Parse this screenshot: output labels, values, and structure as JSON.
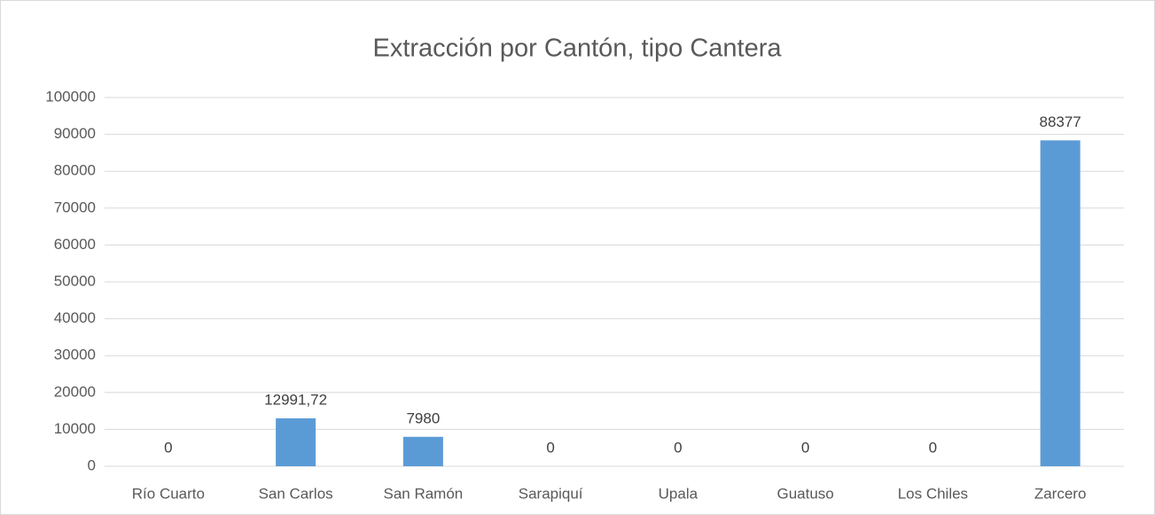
{
  "chart_data": {
    "type": "bar",
    "title": "Extracción por Cantón, tipo Cantera",
    "categories": [
      "Río Cuarto",
      "San Carlos",
      "San Ramón",
      "Sarapiquí",
      "Upala",
      "Guatuso",
      "Los Chiles",
      "Zarcero"
    ],
    "values": [
      0,
      12991.72,
      7980,
      0,
      0,
      0,
      0,
      88377
    ],
    "value_labels": [
      "0",
      "12991,72",
      "7980",
      "0",
      "0",
      "0",
      "0",
      "88377"
    ],
    "color": "#5b9bd5",
    "ylim": [
      0,
      100000
    ],
    "yticks": [
      0,
      10000,
      20000,
      30000,
      40000,
      50000,
      60000,
      70000,
      80000,
      90000,
      100000
    ],
    "grid": true
  }
}
